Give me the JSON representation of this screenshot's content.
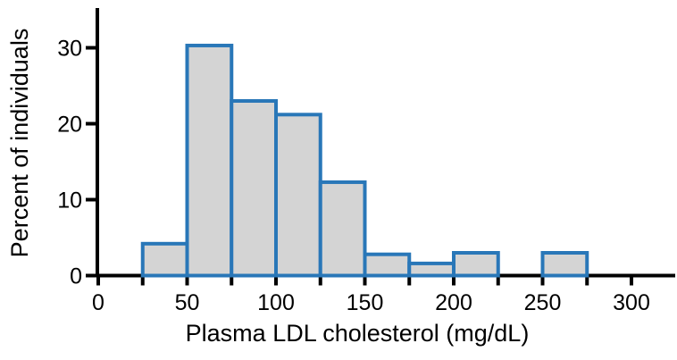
{
  "chart_data": {
    "type": "bar",
    "subtype": "histogram",
    "title": "",
    "xlabel": "Plasma LDL cholesterol (mg/dL)",
    "ylabel": "Percent of individuals",
    "bins": [
      {
        "range": [
          25,
          50
        ],
        "value": 4.2
      },
      {
        "range": [
          50,
          75
        ],
        "value": 30.3
      },
      {
        "range": [
          75,
          100
        ],
        "value": 23.0
      },
      {
        "range": [
          100,
          125
        ],
        "value": 21.2
      },
      {
        "range": [
          125,
          150
        ],
        "value": 12.3
      },
      {
        "range": [
          150,
          175
        ],
        "value": 2.8
      },
      {
        "range": [
          175,
          200
        ],
        "value": 1.6
      },
      {
        "range": [
          200,
          225
        ],
        "value": 3.0
      },
      {
        "range": [
          225,
          250
        ],
        "value": 0
      },
      {
        "range": [
          250,
          275
        ],
        "value": 3.0
      }
    ],
    "x_ticks_major": [
      0,
      50,
      100,
      150,
      200,
      250,
      300
    ],
    "x_ticks_minor": [
      25,
      75,
      125,
      175,
      225,
      275
    ],
    "y_ticks": [
      0,
      10,
      20,
      30
    ],
    "xlim": [
      0,
      324
    ],
    "ylim": [
      0,
      35
    ],
    "grid": false,
    "legend": "none",
    "colors": {
      "bar_fill": "#d4d4d4",
      "bar_stroke": "#2977b8",
      "axis": "#000000",
      "text": "#000000",
      "background": "#ffffff"
    }
  }
}
